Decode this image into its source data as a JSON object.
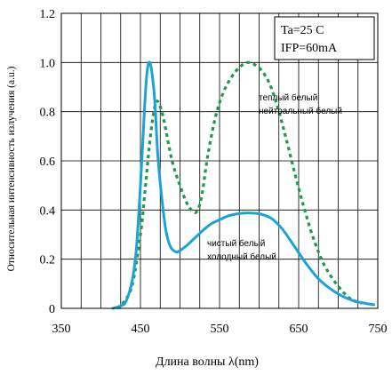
{
  "chart_data": {
    "type": "line",
    "title": "",
    "xlabel": "Длина волны λ(nm)",
    "ylabel": "Относительная интенсивность излучения (a.u.)",
    "xlim": [
      350,
      750
    ],
    "ylim": [
      0,
      1.2
    ],
    "x_ticks": [
      "350",
      "450",
      "550",
      "650",
      "750"
    ],
    "y_ticks": [
      "0",
      "0.2",
      "0.4",
      "0.6",
      "0.8",
      "1.0",
      "1.2"
    ],
    "grid": true,
    "conditions": [
      "Ta=25 C",
      "IFP=60mA"
    ],
    "series": [
      {
        "name": "теплый белый / нейтральный белый",
        "labels": [
          "теплый белый",
          "нейтральный белый"
        ],
        "style": "dotted",
        "color": "#1f9a4a",
        "points": [
          [
            420,
            0.0
          ],
          [
            430,
            0.03
          ],
          [
            440,
            0.1
          ],
          [
            450,
            0.3
          ],
          [
            455,
            0.45
          ],
          [
            460,
            0.62
          ],
          [
            465,
            0.76
          ],
          [
            470,
            0.84
          ],
          [
            475,
            0.82
          ],
          [
            480,
            0.76
          ],
          [
            490,
            0.6
          ],
          [
            500,
            0.5
          ],
          [
            510,
            0.42
          ],
          [
            520,
            0.39
          ],
          [
            527,
            0.45
          ],
          [
            535,
            0.62
          ],
          [
            545,
            0.78
          ],
          [
            555,
            0.88
          ],
          [
            565,
            0.94
          ],
          [
            575,
            0.98
          ],
          [
            585,
            1.0
          ],
          [
            595,
            0.99
          ],
          [
            605,
            0.96
          ],
          [
            615,
            0.9
          ],
          [
            625,
            0.8
          ],
          [
            635,
            0.68
          ],
          [
            645,
            0.55
          ],
          [
            655,
            0.43
          ],
          [
            665,
            0.32
          ],
          [
            675,
            0.23
          ],
          [
            685,
            0.16
          ],
          [
            700,
            0.09
          ],
          [
            715,
            0.04
          ],
          [
            730,
            0.02
          ]
        ]
      },
      {
        "name": "чистый белый / холодный белый",
        "labels": [
          "чистый белый",
          "холодный белый"
        ],
        "style": "solid",
        "color": "#1ba3d8",
        "points": [
          [
            415,
            0.0
          ],
          [
            425,
            0.01
          ],
          [
            432,
            0.03
          ],
          [
            440,
            0.12
          ],
          [
            445,
            0.25
          ],
          [
            450,
            0.5
          ],
          [
            455,
            0.8
          ],
          [
            458,
            0.95
          ],
          [
            461,
            1.0
          ],
          [
            464,
            0.97
          ],
          [
            468,
            0.85
          ],
          [
            472,
            0.62
          ],
          [
            477,
            0.45
          ],
          [
            482,
            0.32
          ],
          [
            488,
            0.25
          ],
          [
            495,
            0.23
          ],
          [
            500,
            0.235
          ],
          [
            510,
            0.26
          ],
          [
            520,
            0.29
          ],
          [
            530,
            0.32
          ],
          [
            540,
            0.345
          ],
          [
            550,
            0.36
          ],
          [
            560,
            0.375
          ],
          [
            570,
            0.383
          ],
          [
            580,
            0.387
          ],
          [
            590,
            0.388
          ],
          [
            600,
            0.385
          ],
          [
            610,
            0.375
          ],
          [
            618,
            0.36
          ],
          [
            630,
            0.32
          ],
          [
            645,
            0.25
          ],
          [
            660,
            0.18
          ],
          [
            675,
            0.12
          ],
          [
            690,
            0.08
          ],
          [
            705,
            0.05
          ],
          [
            720,
            0.03
          ],
          [
            735,
            0.02
          ],
          [
            745,
            0.015
          ]
        ]
      }
    ]
  }
}
